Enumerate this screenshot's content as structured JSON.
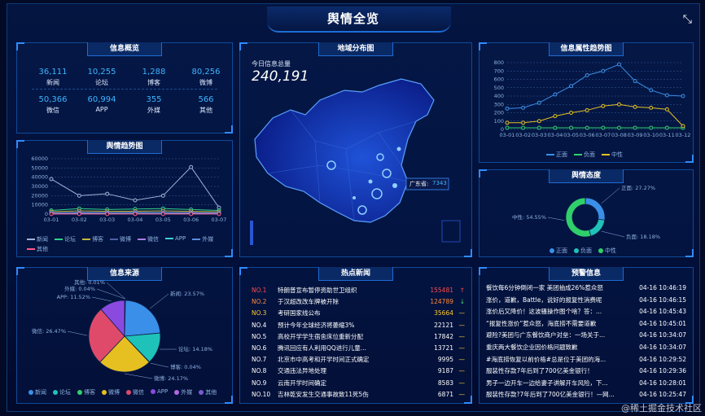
{
  "header": {
    "title": "舆情全览"
  },
  "overview": {
    "title": "信息概览",
    "items": [
      {
        "value": "36,111",
        "label": "新闻"
      },
      {
        "value": "10,255",
        "label": "论坛"
      },
      {
        "value": "1,288",
        "label": "博客"
      },
      {
        "value": "80,256",
        "label": "微博"
      },
      {
        "value": "50,366",
        "label": "微信"
      },
      {
        "value": "60,994",
        "label": "APP"
      },
      {
        "value": "355",
        "label": "外媒"
      },
      {
        "value": "566",
        "label": "其他"
      }
    ]
  },
  "trend": {
    "title": "舆情趋势图",
    "legend": [
      "新闻",
      "论坛",
      "博客",
      "微博",
      "微信",
      "APP",
      "外媒",
      "其他"
    ]
  },
  "source": {
    "title": "信息来源"
  },
  "map": {
    "title": "地域分布图",
    "total_label": "今日信息总量",
    "total_value": "240,191",
    "tooltip_province": "广东省:",
    "tooltip_value": "7343"
  },
  "news": {
    "title": "热点新闻",
    "rows": [
      {
        "rank": "NO.1",
        "title": "特朗普宣布暂停资助世卫组织",
        "count": "155481",
        "arrow": "↑",
        "rank_color": "#ff4a4a",
        "count_color": "#ff4a4a",
        "arrow_color": "#ff4a4a"
      },
      {
        "rank": "NO.2",
        "title": "于汉超改改车牌被开除",
        "count": "124789",
        "arrow": "↓",
        "rank_color": "#ff8a3a",
        "count_color": "#ff8a3a",
        "arrow_color": "#3fdc6a"
      },
      {
        "rank": "NO.3",
        "title": "考研国家线公布",
        "count": "35664",
        "arrow": "—",
        "rank_color": "#ffc72e",
        "count_color": "#ffc72e",
        "arrow_color": "#ffc72e"
      },
      {
        "rank": "NO.4",
        "title": "预计今年全球经济将萎缩3%",
        "count": "22121",
        "arrow": "—",
        "rank_color": "#ffffff",
        "count_color": "#ffffff",
        "arrow_color": "#ffc72e"
      },
      {
        "rank": "NO.5",
        "title": "高校开学学生宿舍床位重新分配",
        "count": "17842",
        "arrow": "—",
        "rank_color": "#ffffff",
        "count_color": "#ffffff",
        "arrow_color": "#ffc72e"
      },
      {
        "rank": "NO.6",
        "title": "腾讯回应有人利用QQ进行儿童...",
        "count": "13721",
        "arrow": "—",
        "rank_color": "#ffffff",
        "count_color": "#ffffff",
        "arrow_color": "#ffc72e"
      },
      {
        "rank": "NO.7",
        "title": "北京市中高考和开学时间正式确定",
        "count": "9995",
        "arrow": "—",
        "rank_color": "#ffffff",
        "count_color": "#ffffff",
        "arrow_color": "#ffc72e"
      },
      {
        "rank": "NO.8",
        "title": "交通违法异地处理",
        "count": "9187",
        "arrow": "—",
        "rank_color": "#ffffff",
        "count_color": "#ffffff",
        "arrow_color": "#ffc72e"
      },
      {
        "rank": "NO.9",
        "title": "云南开学时间确定",
        "count": "8583",
        "arrow": "—",
        "rank_color": "#ffffff",
        "count_color": "#ffffff",
        "arrow_color": "#ffc72e"
      },
      {
        "rank": "NO.10",
        "title": "吉林乾安发生交通事故致11死5伤",
        "count": "6871",
        "arrow": "—",
        "rank_color": "#ffffff",
        "count_color": "#ffffff",
        "arrow_color": "#ffc72e"
      }
    ]
  },
  "attr_trend": {
    "title": "信息属性趋势图",
    "legend": [
      "正面",
      "负面",
      "中性"
    ]
  },
  "attitude": {
    "title": "舆情态度",
    "legend": [
      "正面",
      "负面",
      "中性"
    ]
  },
  "warnings": {
    "title": "预警信息",
    "rows": [
      {
        "text": "餐饮每6分钟倒闭一家 美团抽成26%惹众怒",
        "time": "04-16 10:46:19"
      },
      {
        "text": "涨价，道歉，Battle，说好的报复性消费呢",
        "time": "04-16 10:46:15"
      },
      {
        "text": "涨价后又降价！这波骚操作图个啥？答：...",
        "time": "04-16 10:45:43"
      },
      {
        "text": "“报复性涨价”惹众怒，海底捞不需要道歉",
        "time": "04-16 10:45:01"
      },
      {
        "text": "避险?美团与广东餐饮商户对垒：一场关于...",
        "time": "04-16 10:34:07"
      },
      {
        "text": "重庆两大餐饮企业因价格问题致歉",
        "time": "04-16 10:34:07"
      },
      {
        "text": "#海底捞恢复以前价格#总是位于美团的海...",
        "time": "04-16 10:29:52"
      },
      {
        "text": "服装性存款7年后到了700亿美金银行！",
        "time": "04-16 10:29:36"
      },
      {
        "text": "男子一边开车一边给妻子讲解开车风险，下...",
        "time": "04-16 10:28:01"
      },
      {
        "text": "服装性存款?7年后到了700亿美金银行！—网...",
        "time": "04-16 10:25:47"
      }
    ]
  },
  "watermark": "@稀土掘金技术社区",
  "chart_data": [
    {
      "type": "line",
      "name": "trend",
      "categories": [
        "03-01",
        "03-02",
        "03-03",
        "03-04",
        "03-05",
        "03-06",
        "03-07"
      ],
      "ylim": [
        0,
        60000
      ],
      "yticks": [
        "0",
        "10000",
        "20000",
        "30000",
        "40000",
        "50000",
        "60000"
      ],
      "series": [
        {
          "name": "新闻",
          "color": "#9fb3d9",
          "values": [
            38000,
            20000,
            22000,
            15000,
            20000,
            51000,
            7000
          ]
        },
        {
          "name": "论坛",
          "color": "#2fd08a",
          "values": [
            4000,
            6000,
            5000,
            5500,
            6000,
            5000,
            4000
          ]
        },
        {
          "name": "博客",
          "color": "#c4b83a",
          "values": [
            2500,
            3500,
            3000,
            3200,
            3500,
            3000,
            2500
          ]
        },
        {
          "name": "微博",
          "color": "#4a5fa8",
          "values": [
            1500,
            2000,
            1800,
            2200,
            2000,
            1800,
            1500
          ]
        },
        {
          "name": "微信",
          "color": "#a77fe6",
          "values": [
            800,
            1200,
            1000,
            1100,
            1000,
            1200,
            900
          ]
        },
        {
          "name": "APP",
          "color": "#3fd0d0",
          "values": [
            500,
            800,
            700,
            900,
            800,
            700,
            600
          ]
        },
        {
          "name": "外媒",
          "color": "#5a8ce0",
          "values": [
            300,
            400,
            350,
            400,
            380,
            360,
            300
          ]
        },
        {
          "name": "其他",
          "color": "#ff5a8a",
          "values": [
            100,
            150,
            120,
            150,
            130,
            120,
            100
          ]
        }
      ]
    },
    {
      "type": "pie",
      "name": "source",
      "slices": [
        {
          "label": "新闻: 23.57%",
          "value": 23.57,
          "color": "#3a8fe8"
        },
        {
          "label": "论坛: 14.18%",
          "value": 14.18,
          "color": "#1fc2b8"
        },
        {
          "label": "博客: 0.04%",
          "value": 0.04,
          "color": "#2fd06a"
        },
        {
          "label": "微博: 24.17%",
          "value": 24.17,
          "color": "#e6c020"
        },
        {
          "label": "微信: 26.47%",
          "value": 26.47,
          "color": "#e04a6a"
        },
        {
          "label": "APP: 11.52%",
          "value": 11.52,
          "color": "#8a4ae0"
        },
        {
          "label": "外媒: 0.04%",
          "value": 0.04,
          "color": "#b06ae0"
        },
        {
          "label": "其他: 0.01%",
          "value": 0.01,
          "color": "#7a5ad0"
        }
      ],
      "legend": [
        "新闻",
        "论坛",
        "博客",
        "微博",
        "微信",
        "APP",
        "外媒",
        "其他"
      ]
    },
    {
      "type": "line",
      "name": "attr_trend",
      "categories": [
        "03-01",
        "03-02",
        "03-03",
        "03-04",
        "03-05",
        "03-06",
        "03-07",
        "03-08",
        "03-09",
        "03-10",
        "03-11",
        "03-12"
      ],
      "ylim": [
        0,
        800
      ],
      "yticks": [
        "0",
        "100",
        "200",
        "300",
        "400",
        "500",
        "600",
        "700",
        "800"
      ],
      "series": [
        {
          "name": "正面",
          "color": "#3a8fe8",
          "values": [
            250,
            260,
            320,
            420,
            520,
            650,
            700,
            780,
            580,
            470,
            410,
            400
          ]
        },
        {
          "name": "负面",
          "color": "#2fd06a",
          "values": [
            20,
            20,
            20,
            20,
            20,
            20,
            20,
            20,
            20,
            20,
            20,
            20
          ]
        },
        {
          "name": "中性",
          "color": "#e6c020",
          "values": [
            80,
            80,
            100,
            160,
            200,
            230,
            280,
            300,
            270,
            260,
            240,
            40
          ]
        }
      ]
    },
    {
      "type": "pie",
      "name": "attitude",
      "slices": [
        {
          "label": "正面: 27.27%",
          "value": 27.27,
          "color": "#3a8fe8"
        },
        {
          "label": "负面: 18.18%",
          "value": 18.18,
          "color": "#1fc2b8"
        },
        {
          "label": "中性: 54.55%",
          "value": 54.55,
          "color": "#2fd06a"
        }
      ]
    }
  ]
}
